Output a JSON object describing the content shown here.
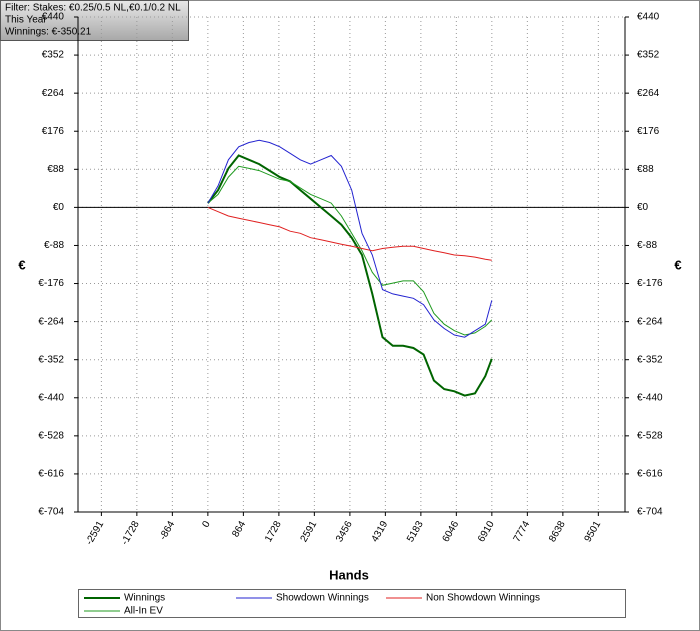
{
  "chart_data": {
    "type": "line",
    "filter_lines": [
      "Filter: Stakes: €0.25/0.5 NL,€0.1/0.2 NL",
      "This Year",
      "Winnings: €-350.21"
    ],
    "x_label": "Hands",
    "y_label": "€",
    "y2_label": "€",
    "xlim": [
      -3160,
      10150
    ],
    "xticks": [
      -2591,
      -1728,
      -864,
      0,
      864,
      1728,
      2591,
      3456,
      4319,
      5183,
      6046,
      6910,
      7774,
      8638,
      9501
    ],
    "ylim": [
      -704,
      440
    ],
    "yticks": [
      {
        "value": 440,
        "label": "€440"
      },
      {
        "value": 352,
        "label": "€352"
      },
      {
        "value": 264,
        "label": "€264"
      },
      {
        "value": 176,
        "label": "€176"
      },
      {
        "value": 88,
        "label": "€88"
      },
      {
        "value": 0,
        "label": "€0"
      },
      {
        "value": -88,
        "label": "€-88"
      },
      {
        "value": -176,
        "label": "€-176"
      },
      {
        "value": -264,
        "label": "€-264"
      },
      {
        "value": -352,
        "label": "€-352"
      },
      {
        "value": -440,
        "label": "€-440"
      },
      {
        "value": -528,
        "label": "€-528"
      },
      {
        "value": -616,
        "label": "€-616"
      },
      {
        "value": -704,
        "label": "€-704"
      }
    ],
    "grid": true,
    "x": [
      0,
      250,
      500,
      750,
      1000,
      1250,
      1500,
      1750,
      2000,
      2250,
      2500,
      2750,
      3000,
      3250,
      3500,
      3750,
      4000,
      4250,
      4500,
      4750,
      5000,
      5250,
      5500,
      5750,
      6000,
      6250,
      6500,
      6750,
      6910
    ],
    "series": [
      {
        "name": "Winnings",
        "color": "#006400",
        "values": [
          10,
          40,
          90,
          120,
          110,
          100,
          85,
          70,
          60,
          40,
          20,
          0,
          -20,
          -40,
          -70,
          -110,
          -200,
          -300,
          -320,
          -320,
          -325,
          -340,
          -400,
          -420,
          -425,
          -435,
          -430,
          -390,
          -350
        ]
      },
      {
        "name": "All-In EV",
        "color": "#1f9a1f",
        "values": [
          10,
          30,
          70,
          95,
          90,
          85,
          75,
          65,
          60,
          45,
          30,
          20,
          10,
          -20,
          -60,
          -100,
          -150,
          -180,
          -175,
          -170,
          -170,
          -195,
          -245,
          -270,
          -285,
          -295,
          -290,
          -275,
          -260
        ]
      },
      {
        "name": "Showdown Winnings",
        "color": "#2323d0",
        "values": [
          10,
          50,
          110,
          140,
          150,
          155,
          150,
          140,
          125,
          110,
          100,
          110,
          120,
          95,
          40,
          -60,
          -110,
          -190,
          -200,
          -205,
          -210,
          -225,
          -260,
          -280,
          -295,
          -300,
          -285,
          -270,
          -215
        ]
      },
      {
        "name": "Non Showdown Winnings",
        "color": "#e02020",
        "values": [
          0,
          -10,
          -20,
          -25,
          -30,
          -35,
          -40,
          -45,
          -55,
          -60,
          -70,
          -75,
          -80,
          -85,
          -90,
          -95,
          -100,
          -95,
          -92,
          -90,
          -90,
          -95,
          -100,
          -105,
          -110,
          -112,
          -115,
          -120,
          -122
        ]
      }
    ]
  }
}
